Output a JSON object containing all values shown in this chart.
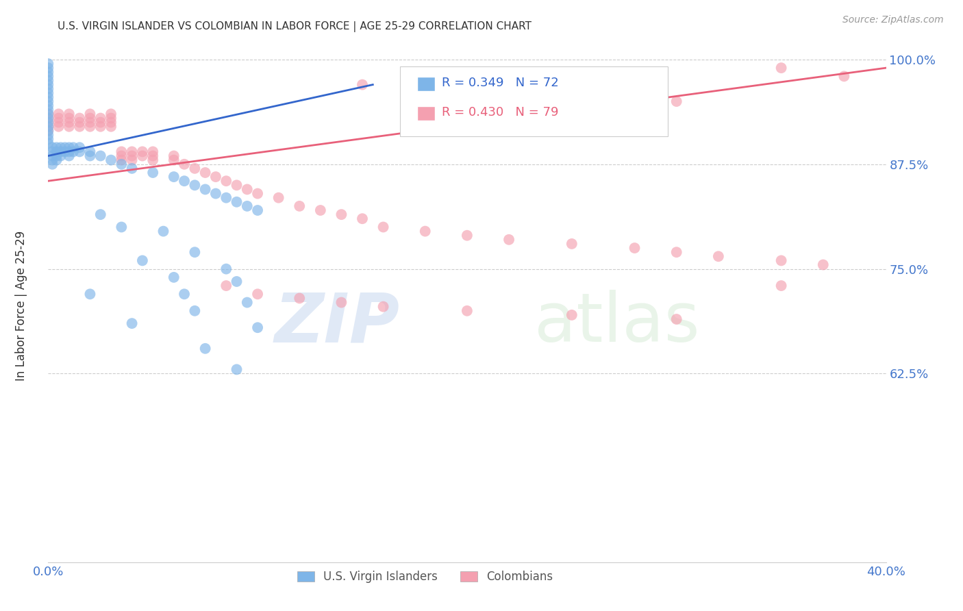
{
  "title": "U.S. VIRGIN ISLANDER VS COLOMBIAN IN LABOR FORCE | AGE 25-29 CORRELATION CHART",
  "source": "Source: ZipAtlas.com",
  "ylabel": "In Labor Force | Age 25-29",
  "xlim": [
    0.0,
    0.4
  ],
  "ylim": [
    0.4,
    1.02
  ],
  "yticks": [
    0.625,
    0.75,
    0.875,
    1.0
  ],
  "ytick_labels": [
    "62.5%",
    "75.0%",
    "87.5%",
    "100.0%"
  ],
  "xticks": [
    0.0,
    0.05,
    0.1,
    0.15,
    0.2,
    0.25,
    0.3,
    0.35,
    0.4
  ],
  "xtick_labels": [
    "0.0%",
    "",
    "",
    "",
    "",
    "",
    "",
    "",
    "40.0%"
  ],
  "background_color": "#ffffff",
  "grid_color": "#cccccc",
  "blue_color": "#7EB5E8",
  "pink_color": "#F4A0B0",
  "blue_line_color": "#3366CC",
  "pink_line_color": "#E8607A",
  "title_color": "#333333",
  "axis_label_color": "#333333",
  "tick_label_color": "#4477CC",
  "source_color": "#999999",
  "blue_scatter_x": [
    0.0,
    0.0,
    0.0,
    0.0,
    0.0,
    0.0,
    0.0,
    0.0,
    0.0,
    0.0,
    0.0,
    0.0,
    0.0,
    0.0,
    0.0,
    0.0,
    0.0,
    0.0,
    0.0,
    0.0,
    0.002,
    0.002,
    0.002,
    0.002,
    0.002,
    0.004,
    0.004,
    0.004,
    0.004,
    0.006,
    0.006,
    0.006,
    0.008,
    0.008,
    0.01,
    0.01,
    0.01,
    0.012,
    0.012,
    0.015,
    0.015,
    0.02,
    0.02,
    0.025,
    0.03,
    0.035,
    0.04,
    0.05,
    0.06,
    0.065,
    0.07,
    0.075,
    0.08,
    0.085,
    0.09,
    0.095,
    0.1,
    0.02,
    0.04,
    0.055,
    0.07,
    0.085,
    0.09,
    0.095,
    0.1,
    0.025,
    0.035,
    0.045,
    0.06,
    0.065,
    0.07,
    0.075,
    0.09
  ],
  "blue_scatter_y": [
    0.995,
    0.99,
    0.985,
    0.98,
    0.975,
    0.97,
    0.965,
    0.96,
    0.955,
    0.95,
    0.945,
    0.94,
    0.935,
    0.93,
    0.925,
    0.92,
    0.915,
    0.91,
    0.905,
    0.9,
    0.895,
    0.89,
    0.885,
    0.88,
    0.875,
    0.895,
    0.89,
    0.885,
    0.88,
    0.895,
    0.89,
    0.885,
    0.895,
    0.89,
    0.895,
    0.89,
    0.885,
    0.895,
    0.89,
    0.895,
    0.89,
    0.89,
    0.885,
    0.885,
    0.88,
    0.875,
    0.87,
    0.865,
    0.86,
    0.855,
    0.85,
    0.845,
    0.84,
    0.835,
    0.83,
    0.825,
    0.82,
    0.72,
    0.685,
    0.795,
    0.77,
    0.75,
    0.735,
    0.71,
    0.68,
    0.815,
    0.8,
    0.76,
    0.74,
    0.72,
    0.7,
    0.655,
    0.63
  ],
  "pink_scatter_x": [
    0.0,
    0.0,
    0.0,
    0.0,
    0.0,
    0.005,
    0.005,
    0.005,
    0.005,
    0.01,
    0.01,
    0.01,
    0.01,
    0.015,
    0.015,
    0.015,
    0.02,
    0.02,
    0.02,
    0.02,
    0.025,
    0.025,
    0.025,
    0.03,
    0.03,
    0.03,
    0.03,
    0.035,
    0.035,
    0.035,
    0.04,
    0.04,
    0.04,
    0.045,
    0.045,
    0.05,
    0.05,
    0.05,
    0.06,
    0.06,
    0.065,
    0.07,
    0.075,
    0.08,
    0.085,
    0.09,
    0.095,
    0.1,
    0.11,
    0.12,
    0.13,
    0.14,
    0.15,
    0.16,
    0.18,
    0.2,
    0.22,
    0.25,
    0.28,
    0.3,
    0.32,
    0.35,
    0.37,
    0.15,
    0.2,
    0.25,
    0.3,
    0.35,
    0.38,
    0.085,
    0.1,
    0.12,
    0.14,
    0.16,
    0.2,
    0.25,
    0.3,
    0.35
  ],
  "pink_scatter_y": [
    0.935,
    0.93,
    0.925,
    0.92,
    0.915,
    0.935,
    0.93,
    0.925,
    0.92,
    0.935,
    0.93,
    0.925,
    0.92,
    0.93,
    0.925,
    0.92,
    0.935,
    0.93,
    0.925,
    0.92,
    0.93,
    0.925,
    0.92,
    0.935,
    0.93,
    0.925,
    0.92,
    0.89,
    0.885,
    0.88,
    0.89,
    0.885,
    0.88,
    0.89,
    0.885,
    0.89,
    0.885,
    0.88,
    0.885,
    0.88,
    0.875,
    0.87,
    0.865,
    0.86,
    0.855,
    0.85,
    0.845,
    0.84,
    0.835,
    0.825,
    0.82,
    0.815,
    0.81,
    0.8,
    0.795,
    0.79,
    0.785,
    0.78,
    0.775,
    0.77,
    0.765,
    0.76,
    0.755,
    0.97,
    0.96,
    0.955,
    0.95,
    0.99,
    0.98,
    0.73,
    0.72,
    0.715,
    0.71,
    0.705,
    0.7,
    0.695,
    0.69,
    0.73
  ],
  "blue_trend_x": [
    0.0,
    0.155
  ],
  "blue_trend_y": [
    0.885,
    0.97
  ],
  "pink_trend_x": [
    0.0,
    0.4
  ],
  "pink_trend_y": [
    0.855,
    0.99
  ]
}
